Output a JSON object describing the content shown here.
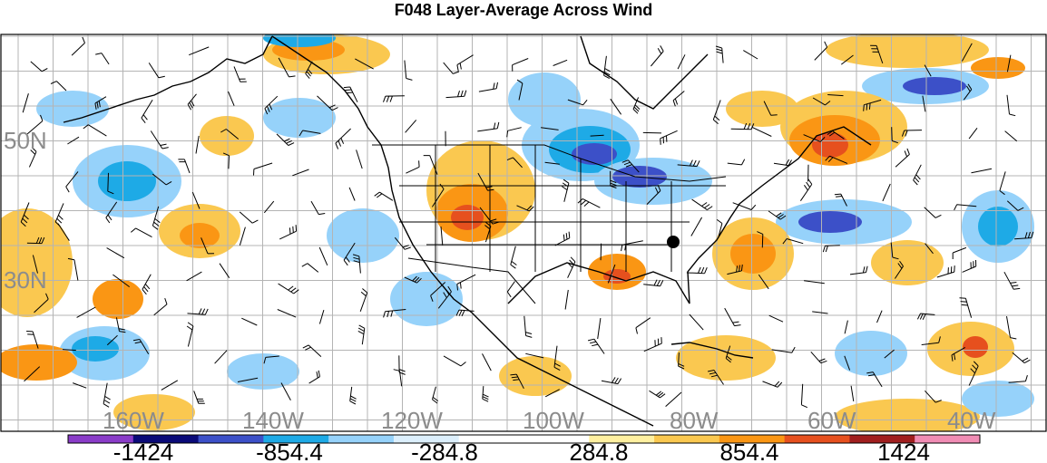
{
  "title": "F048 Layer-Average Across Wind",
  "map": {
    "latitude_labels": [
      "50N",
      "30N"
    ],
    "longitude_labels": [
      "160W",
      "140W",
      "120W",
      "100W",
      "80W",
      "60W",
      "40W"
    ],
    "station_marker": "black-dot-marker"
  },
  "colorbar": {
    "colors": [
      "#8a3cc8",
      "#0a0a78",
      "#3c50c8",
      "#1eaae6",
      "#96d2fa",
      "#dceffc",
      "#ffffff",
      "#ffffff",
      "#fff0a0",
      "#fac850",
      "#fa9614",
      "#e6501e",
      "#a01e1e",
      "#f08cb4"
    ],
    "tick_labels": [
      "-1424",
      "-854.4",
      "-284.8",
      "284.8",
      "854.4",
      "1424"
    ]
  }
}
